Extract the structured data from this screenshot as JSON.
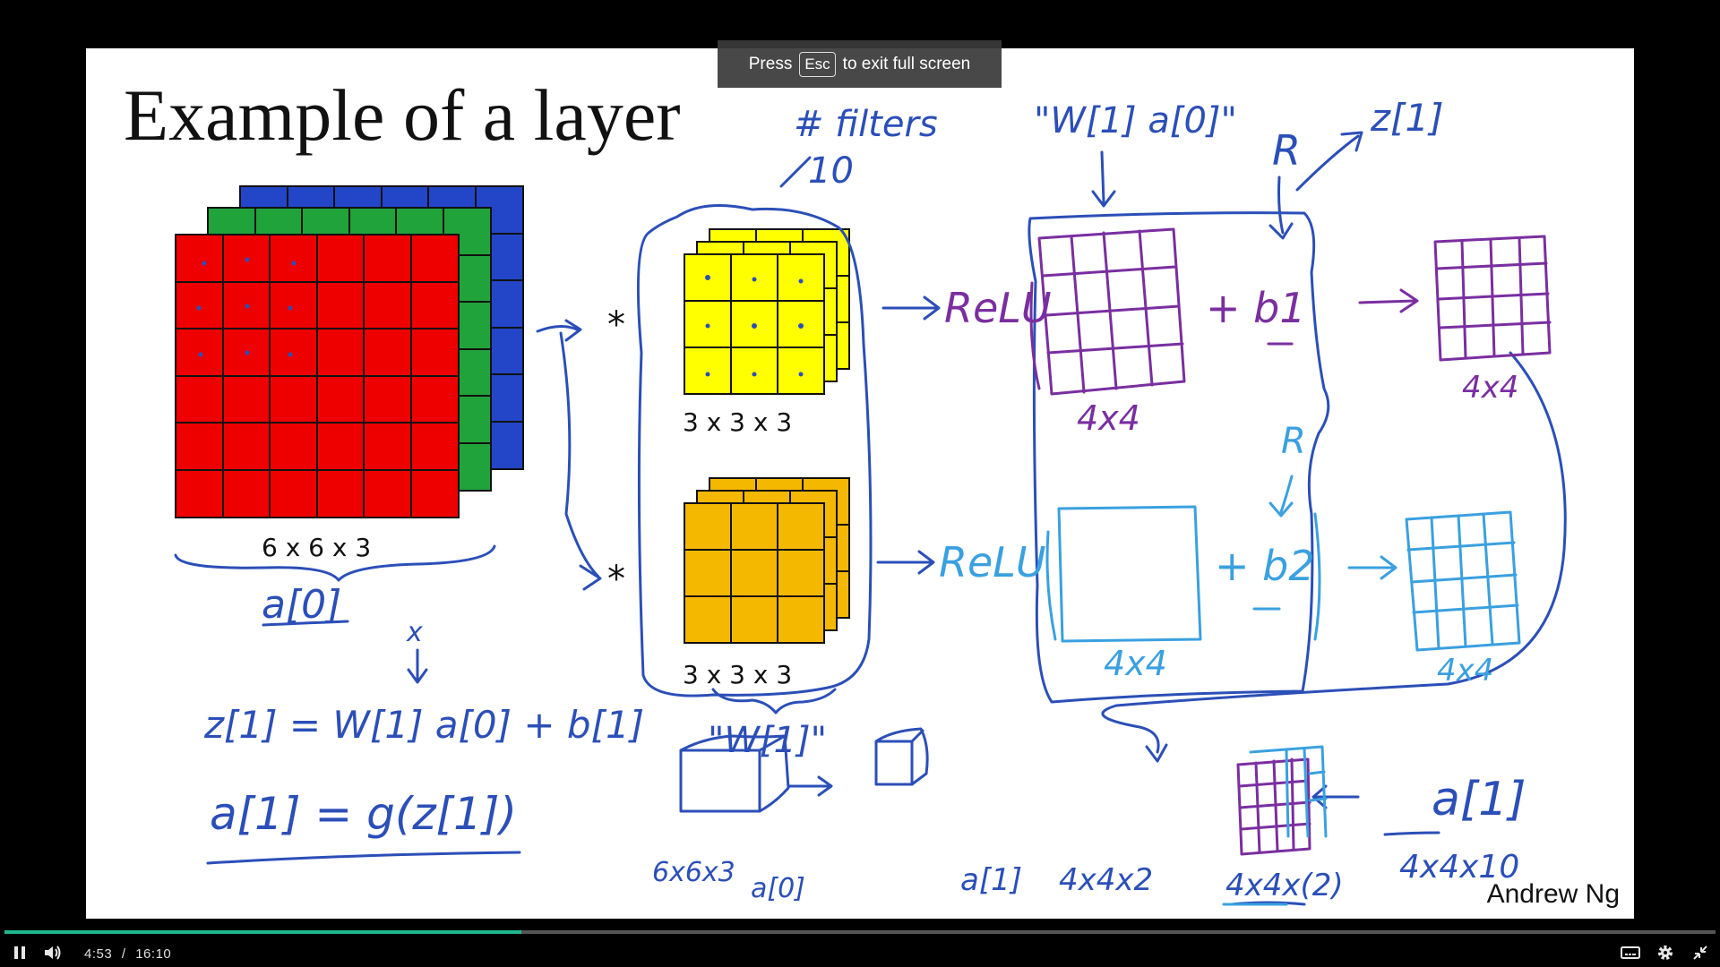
{
  "slide": {
    "title": "Example of a layer",
    "input_dim": "6 x 6 x 3",
    "filter1_dim": "3 x 3 x 3",
    "filter2_dim": "3 x 3 x 3",
    "author": "Andrew Ng"
  },
  "annotations": {
    "filters_note": "# filters",
    "filters_count": "10",
    "wa_expr": "\"W[1] a[0]\"",
    "relu1": "ReLU",
    "relu2": "ReLU",
    "b1": "+ b1",
    "b2": "+ b2",
    "r1": "R",
    "r2": "R",
    "z1": "z[1]",
    "dim_4x4_a": "4x4",
    "dim_4x4_b": "4x4",
    "dim_4x4_c": "4x4",
    "dim_4x4_d": "4x4",
    "a0": "a[0]",
    "x": "x",
    "eq1": "z[1] = W[1] a[0] + b[1]",
    "eq2": "a[1] = g(z[1])",
    "w1": "\"W[1]\"",
    "cube1_dim": "6x6x3",
    "cube1_label": "a[0]",
    "cube2_label": "a[1]",
    "cube2_dim": "4x4x2",
    "stack_dim": "4x4x(2)",
    "a1_label": "a[1]",
    "a1_dim": "4x4x10"
  },
  "colors": {
    "red": "#ee0000",
    "green": "#21a33b",
    "blue": "#2346c8",
    "yellow": "#ffff00",
    "orange": "#f5b800",
    "ink_blue": "#2b4fb8",
    "ink_purple": "#7a2ea0",
    "ink_light": "#3aa0e0"
  },
  "overlay": {
    "press": "Press",
    "key": "Esc",
    "rest": "to exit full screen"
  },
  "player": {
    "current_time": "4:53",
    "separator": "/",
    "duration": "16:10",
    "progress": 0.302
  },
  "icons": [
    "pause-icon",
    "volume-icon",
    "captions-icon",
    "settings-icon",
    "exit-fullscreen-icon"
  ]
}
